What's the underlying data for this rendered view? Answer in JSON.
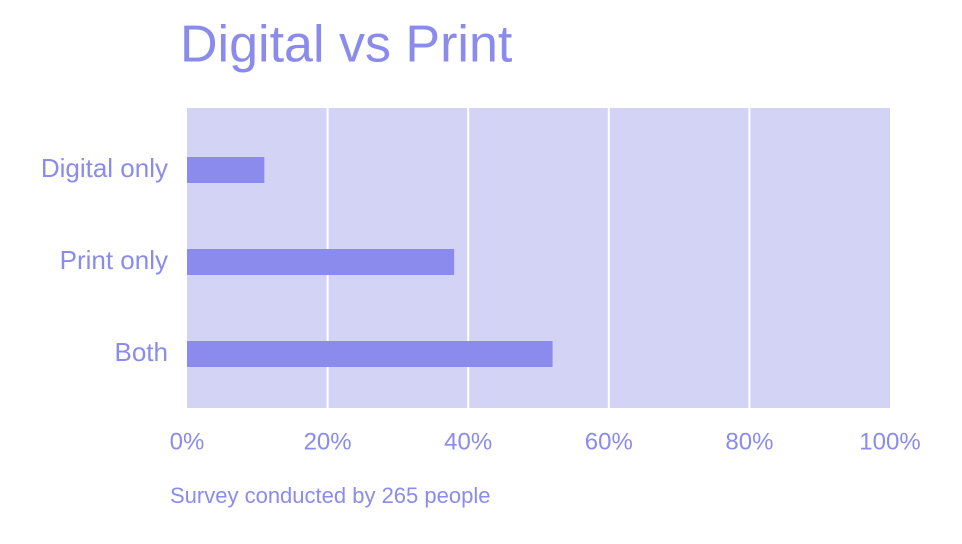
{
  "chart_data": {
    "type": "bar",
    "orientation": "horizontal",
    "title": "Digital vs Print",
    "categories": [
      "Digital only",
      "Print only",
      "Both"
    ],
    "values": [
      11,
      38,
      52
    ],
    "color": "#8b8bed",
    "xlim": [
      0,
      100
    ],
    "xticks": [
      {
        "value": 0,
        "label": "0%"
      },
      {
        "value": 20,
        "label": "20%"
      },
      {
        "value": 40,
        "label": "40%"
      },
      {
        "value": 60,
        "label": "60%"
      },
      {
        "value": 80,
        "label": "80%"
      },
      {
        "value": 100,
        "label": "100%"
      }
    ],
    "grid": true,
    "note": "Survey conducted by 265 people"
  }
}
